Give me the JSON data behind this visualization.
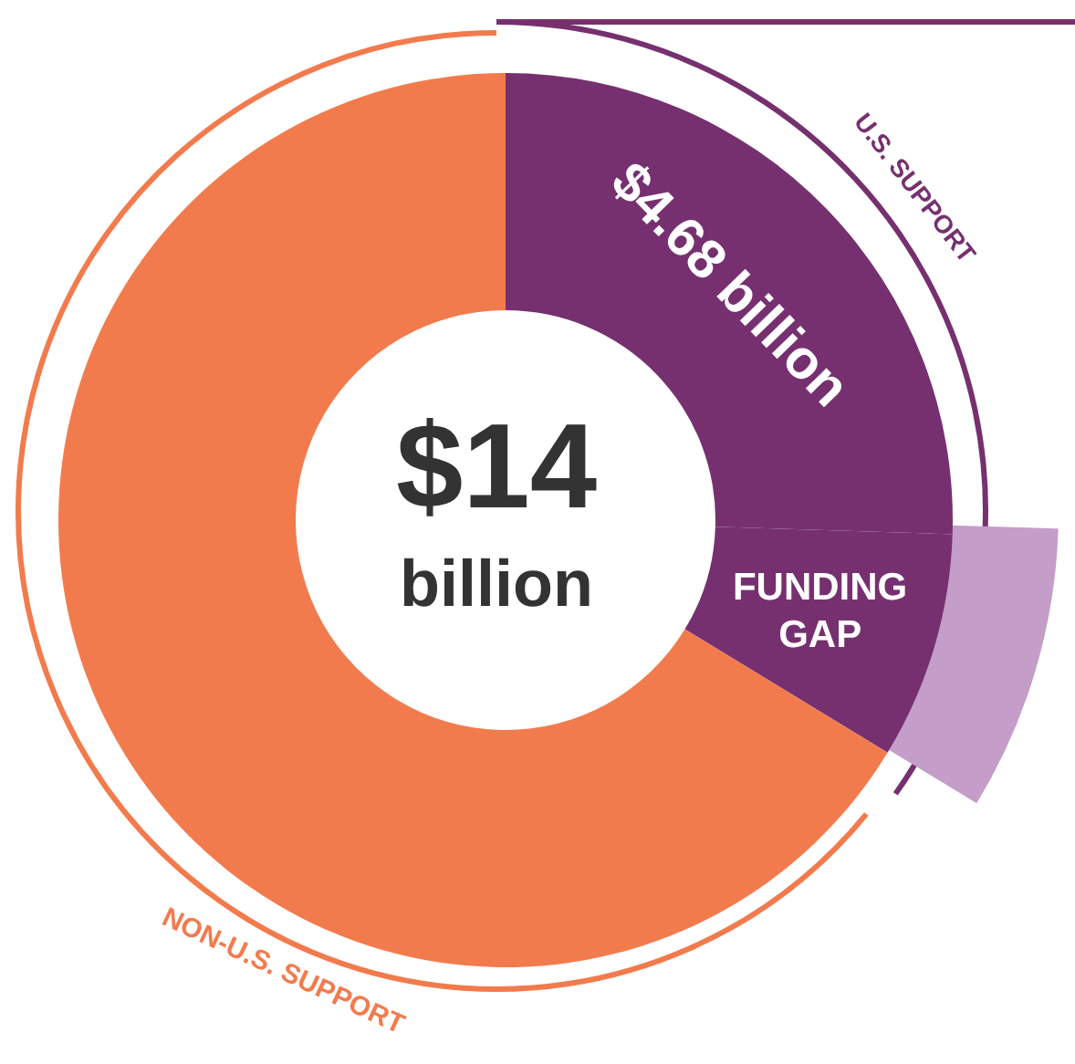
{
  "chart_data": {
    "type": "donut",
    "title": "$14 billion",
    "categories": [
      "$4.68 billion",
      "FUNDING GAP",
      "NON-U.S. SUPPORT"
    ],
    "values": [
      25.5,
      8.2,
      66.3
    ],
    "colors": [
      "#76306f",
      "#76306f",
      "#f27b4d"
    ],
    "annotations": [
      "U.S. SUPPORT"
    ]
  }
}
